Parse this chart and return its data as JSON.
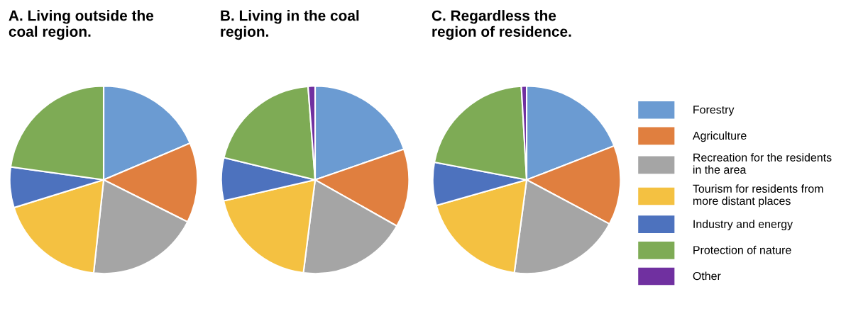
{
  "chart_data": [
    {
      "type": "pie",
      "title": "A. Living outside the\ncoal region.",
      "categories": [
        "Forestry",
        "Agriculture",
        "Recreation for the residents\nin the area",
        "Tourism for residents from\nmore distant places",
        "Industry and energy",
        "Protection of nature",
        "Other"
      ],
      "values": [
        18.6,
        13.8,
        19.3,
        18.5,
        7.0,
        22.8,
        0
      ],
      "colors": [
        "#6b9bd2",
        "#e07f3f",
        "#a5a5a5",
        "#f4c141",
        "#4d72be",
        "#7eab55",
        "#7030a0"
      ],
      "legend": "right"
    },
    {
      "type": "pie",
      "title": "B. Living in the coal\nregion.",
      "categories": [
        null,
        null,
        null,
        null,
        null,
        null,
        null
      ],
      "values": [
        19.7,
        13.5,
        18.8,
        19.4,
        7.4,
        20.0,
        1.2
      ],
      "colors": [
        "#6b9bd2",
        "#e07f3f",
        "#a5a5a5",
        "#f4c141",
        "#4d72be",
        "#7eab55",
        "#7030a0"
      ]
    },
    {
      "type": "pie",
      "title": "C. Regardless the\nregion of residence.",
      "categories": [
        null,
        null,
        null,
        null,
        null,
        null,
        null
      ],
      "values": [
        19.1,
        13.7,
        19.3,
        18.5,
        7.4,
        21.1,
        0.9
      ],
      "colors": [
        "#6b9bd2",
        "#e07f3f",
        "#a5a5a5",
        "#f4c141",
        "#4d72be",
        "#7eab55",
        "#7030a0"
      ]
    }
  ]
}
